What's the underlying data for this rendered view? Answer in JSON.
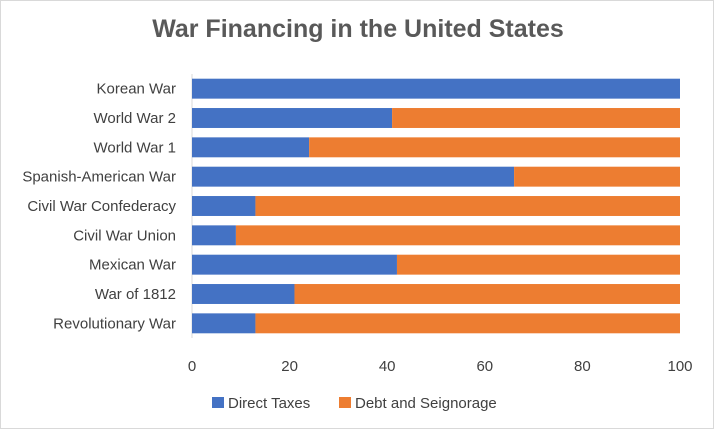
{
  "chart_data": {
    "type": "bar",
    "orientation": "horizontal",
    "stacked": true,
    "title": "War Financing in the United States",
    "categories": [
      "Revolutionary War",
      "War of 1812",
      "Mexican War",
      "Civil War Union",
      "Civil War Confederacy",
      "Spanish-American War",
      "World War 1",
      "World War 2",
      "Korean War"
    ],
    "series": [
      {
        "name": "Direct Taxes",
        "color": "#4472c4",
        "values": [
          13,
          21,
          42,
          9,
          13,
          66,
          24,
          41,
          100
        ]
      },
      {
        "name": "Debt and Seignorage",
        "color": "#ed7d31",
        "values": [
          87,
          79,
          58,
          91,
          87,
          34,
          76,
          59,
          0
        ]
      }
    ],
    "xlim": [
      0,
      100
    ],
    "xticks": [
      0,
      20,
      40,
      60,
      80,
      100
    ],
    "xlabel": "",
    "ylabel": "",
    "grid": false,
    "legend": "bottom"
  }
}
